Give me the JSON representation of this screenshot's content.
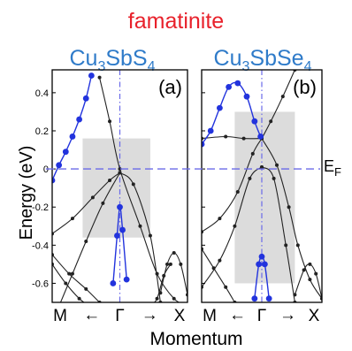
{
  "title": "famatinite",
  "title_color": "#e8212b",
  "formula_color": "#2f7bc9",
  "colors": {
    "blue_marker": "#2233dd",
    "band_line": "#222222",
    "fermi_line": "#6a6ae8",
    "gamma_line": "#6a6ae8",
    "highlight_box": "#dcdcdc"
  },
  "chart_data": [
    {
      "type": "line",
      "panel_label": "(a)",
      "material": {
        "base": "Cu",
        "sub1": "3",
        "mid": "SbS",
        "sub2": "4"
      },
      "x_tick_labels": [
        "M",
        "Γ",
        "X"
      ],
      "x_arrows": [
        "←",
        "→"
      ],
      "xlabel": "Momentum",
      "ylabel": "Energy (eV)",
      "y_ticks": [
        0.4,
        0.2,
        0,
        -0.2,
        -0.4,
        -0.6
      ],
      "ylim": [
        -0.7,
        0.52
      ],
      "xlim": [
        -1,
        1
      ],
      "gamma_x": 0,
      "fermi_level": 0,
      "fermi_label": {
        "main": "E",
        "sub": "F"
      },
      "highlight_region": {
        "x": [
          -0.55,
          0.45
        ],
        "y": [
          -0.36,
          0.16
        ]
      },
      "series": [
        {
          "style": "black",
          "x": [
            -1,
            -0.7,
            -0.4,
            -0.15,
            0
          ],
          "y": [
            -0.34,
            -0.26,
            -0.15,
            -0.06,
            -0.02
          ]
        },
        {
          "style": "black",
          "x": [
            0,
            0.2,
            0.45,
            0.6
          ],
          "y": [
            -0.02,
            -0.08,
            -0.35,
            -0.7
          ]
        },
        {
          "style": "black",
          "x": [
            -0.3,
            -0.15,
            0,
            0.3,
            0.55,
            0.8,
            1
          ],
          "y": [
            0.48,
            0.25,
            0,
            -0.3,
            -0.55,
            -0.68,
            -0.72
          ]
        },
        {
          "style": "black",
          "x": [
            -0.9,
            -0.7,
            -0.5,
            -0.25,
            0
          ],
          "y": [
            -0.72,
            -0.55,
            -0.38,
            -0.18,
            -0.02
          ]
        },
        {
          "style": "black",
          "x": [
            -1,
            -0.75,
            -0.5,
            -0.3
          ],
          "y": [
            -0.45,
            -0.55,
            -0.63,
            -0.7
          ]
        },
        {
          "style": "black",
          "x": [
            -1,
            -0.8,
            -0.6,
            -0.45
          ],
          "y": [
            -0.5,
            -0.6,
            -0.68,
            -0.72
          ]
        },
        {
          "style": "black",
          "x": [
            0.6,
            0.7,
            0.8,
            0.9,
            1
          ],
          "y": [
            -0.65,
            -0.5,
            -0.44,
            -0.5,
            -0.66
          ]
        },
        {
          "style": "black",
          "x": [
            0.45,
            0.55,
            0.65,
            0.75
          ],
          "y": [
            -0.72,
            -0.68,
            -0.56,
            -0.5
          ]
        },
        {
          "style": "blue",
          "x": [
            -1,
            -0.9,
            -0.8,
            -0.7,
            -0.6,
            -0.5,
            -0.42
          ],
          "y": [
            -0.06,
            0.02,
            0.09,
            0.17,
            0.26,
            0.37,
            0.49
          ]
        },
        {
          "style": "blue",
          "x": [
            -0.1,
            -0.04,
            0,
            0.04,
            0.1
          ],
          "y": [
            -0.6,
            -0.35,
            -0.2,
            -0.32,
            -0.58
          ]
        }
      ]
    },
    {
      "type": "line",
      "panel_label": "(b)",
      "material": {
        "base": "Cu",
        "sub1": "3",
        "mid": "SbSe",
        "sub2": "4"
      },
      "x_tick_labels": [
        "M",
        "Γ",
        "X"
      ],
      "x_arrows": [
        "←",
        "→"
      ],
      "xlabel": "Momentum",
      "ylabel": "Energy (eV)",
      "y_ticks": [
        0.4,
        0.2,
        0,
        -0.2,
        -0.4,
        -0.6
      ],
      "ylim": [
        -0.7,
        0.52
      ],
      "xlim": [
        -1,
        1
      ],
      "gamma_x": 0,
      "fermi_level": 0,
      "fermi_label": {
        "main": "E",
        "sub": "F"
      },
      "highlight_region": {
        "x": [
          -0.45,
          0.55
        ],
        "y": [
          -0.6,
          0.3
        ]
      },
      "series": [
        {
          "style": "black",
          "x": [
            -1,
            -0.7,
            -0.4,
            -0.15,
            0
          ],
          "y": [
            -0.33,
            -0.26,
            -0.12,
            0.08,
            0.16
          ]
        },
        {
          "style": "black",
          "x": [
            0,
            0.15,
            0.35,
            0.55
          ],
          "y": [
            0.16,
            0.25,
            0.38,
            0.52
          ]
        },
        {
          "style": "black",
          "x": [
            -1,
            -0.6,
            -0.3,
            0
          ],
          "y": [
            0.16,
            0.17,
            0.16,
            0.16
          ]
        },
        {
          "style": "black",
          "x": [
            0,
            0.25,
            0.45,
            0.6,
            0.8,
            1
          ],
          "y": [
            0.16,
            0.02,
            -0.2,
            -0.4,
            -0.58,
            -0.68
          ]
        },
        {
          "style": "black",
          "x": [
            -1,
            -0.7,
            -0.45,
            -0.2,
            0
          ],
          "y": [
            -0.62,
            -0.48,
            -0.3,
            -0.05,
            0.01
          ]
        },
        {
          "style": "black",
          "x": [
            0,
            0.2,
            0.4,
            0.55
          ],
          "y": [
            0.01,
            -0.05,
            -0.4,
            -0.7
          ]
        },
        {
          "style": "black",
          "x": [
            -1,
            -0.8,
            -0.6,
            -0.45
          ],
          "y": [
            -0.42,
            -0.52,
            -0.62,
            -0.7
          ]
        },
        {
          "style": "black",
          "x": [
            0.55,
            0.7,
            0.8,
            0.9,
            1
          ],
          "y": [
            -0.66,
            -0.53,
            -0.5,
            -0.55,
            -0.68
          ]
        },
        {
          "style": "blue",
          "x": [
            -1,
            -0.85,
            -0.7,
            -0.55,
            -0.4,
            -0.25,
            -0.12,
            -0.02
          ],
          "y": [
            0.13,
            0.2,
            0.32,
            0.43,
            0.45,
            0.38,
            0.25,
            0.17
          ]
        },
        {
          "style": "blue",
          "x": [
            -0.12,
            -0.05,
            0,
            0.05,
            0.12
          ],
          "y": [
            -0.68,
            -0.5,
            -0.46,
            -0.5,
            -0.68
          ]
        }
      ]
    }
  ]
}
